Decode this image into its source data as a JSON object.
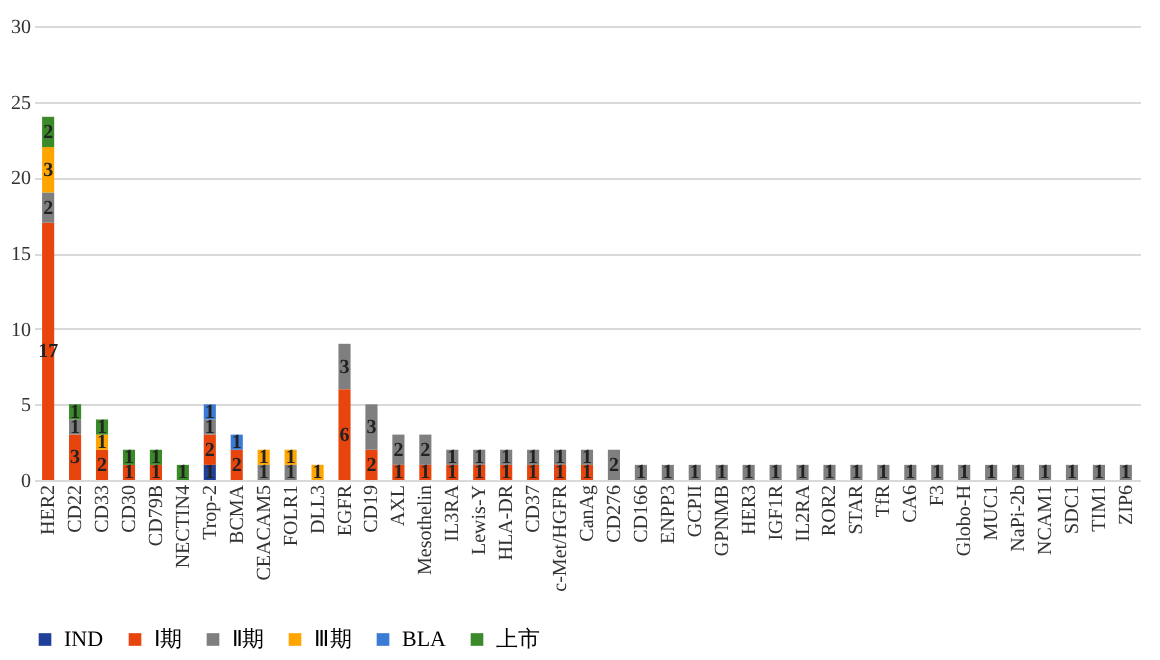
{
  "chart_data": {
    "type": "bar",
    "stacked": true,
    "categories": [
      "HER2",
      "CD22",
      "CD33",
      "CD30",
      "CD79B",
      "NECTIN4",
      "Trop-2",
      "BCMA",
      "CEACAM5",
      "FOLR1",
      "DLL3",
      "EGFR",
      "CD19",
      "AXL",
      "Mesothelin",
      "IL3RA",
      "Lewis-Y",
      "HLA-DR",
      "CD37",
      "c-Met/HGFR",
      "CanAg",
      "CD276",
      "CD166",
      "ENPP3",
      "GCPII",
      "GPNMB",
      "HER3",
      "IGF1R",
      "IL2RA",
      "ROR2",
      "STAR",
      "TfR",
      "CA6",
      "F3",
      "Globo-H",
      "MUC1",
      "NaPi-2b",
      "NCAM1",
      "SDC1",
      "TIM1",
      "ZIP6"
    ],
    "series": [
      {
        "name": "IND",
        "color": "#1f3f99",
        "values": [
          null,
          null,
          null,
          null,
          null,
          null,
          1,
          null,
          null,
          null,
          null,
          null,
          null,
          null,
          null,
          null,
          null,
          null,
          null,
          null,
          null,
          null,
          null,
          null,
          null,
          null,
          null,
          null,
          null,
          null,
          null,
          null,
          null,
          null,
          null,
          null,
          null,
          null,
          null,
          null,
          null
        ]
      },
      {
        "name": "Ⅰ期",
        "color": "#e8450e",
        "values": [
          17,
          3,
          2,
          1,
          1,
          null,
          2,
          2,
          null,
          null,
          null,
          6,
          2,
          1,
          1,
          1,
          1,
          1,
          1,
          1,
          1,
          null,
          null,
          null,
          null,
          null,
          null,
          null,
          null,
          null,
          null,
          null,
          null,
          null,
          null,
          null,
          null,
          null,
          null,
          null,
          null
        ]
      },
      {
        "name": "Ⅱ期",
        "color": "#7f7f7f",
        "values": [
          2,
          1,
          null,
          null,
          null,
          null,
          1,
          null,
          1,
          1,
          null,
          3,
          3,
          2,
          2,
          1,
          1,
          1,
          1,
          1,
          1,
          2,
          1,
          1,
          1,
          1,
          1,
          1,
          1,
          1,
          1,
          1,
          1,
          1,
          1,
          1,
          1,
          1,
          1,
          1,
          1
        ]
      },
      {
        "name": "Ⅲ期",
        "color": "#ffa500",
        "values": [
          3,
          null,
          1,
          null,
          null,
          null,
          null,
          null,
          1,
          1,
          1,
          null,
          null,
          null,
          null,
          null,
          null,
          null,
          null,
          null,
          null,
          null,
          null,
          null,
          null,
          null,
          null,
          null,
          null,
          null,
          null,
          null,
          null,
          null,
          null,
          null,
          null,
          null,
          null,
          null,
          null
        ]
      },
      {
        "name": "BLA",
        "color": "#3a7bd5",
        "values": [
          null,
          null,
          null,
          null,
          null,
          null,
          1,
          1,
          null,
          null,
          null,
          null,
          null,
          null,
          null,
          null,
          null,
          null,
          null,
          null,
          null,
          null,
          null,
          null,
          null,
          null,
          null,
          null,
          null,
          null,
          null,
          null,
          null,
          null,
          null,
          null,
          null,
          null,
          null,
          null,
          null
        ]
      },
      {
        "name": "上市",
        "color": "#3a8a2a",
        "values": [
          2,
          1,
          1,
          1,
          1,
          1,
          null,
          null,
          null,
          null,
          null,
          null,
          null,
          null,
          null,
          null,
          null,
          null,
          null,
          null,
          null,
          null,
          null,
          null,
          null,
          null,
          null,
          null,
          null,
          null,
          null,
          null,
          null,
          null,
          null,
          null,
          null,
          null,
          null,
          null,
          null
        ]
      }
    ],
    "ylim": [
      0,
      30
    ],
    "yticks": [
      0,
      5,
      10,
      15,
      20,
      25,
      30
    ],
    "grid": "y",
    "legend": "bottom",
    "data_labels": true
  }
}
